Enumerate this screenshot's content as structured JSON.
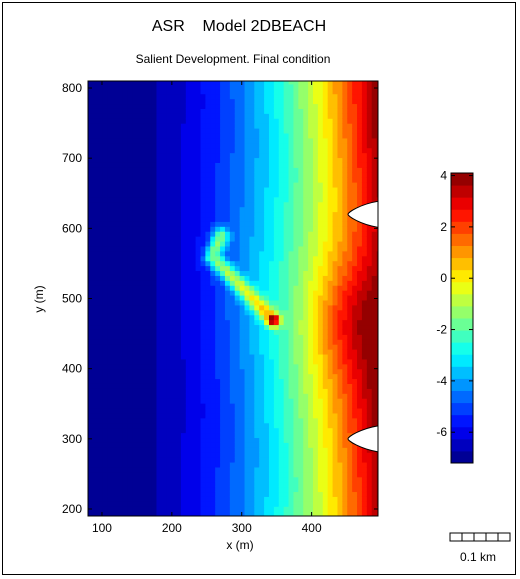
{
  "chart_data": {
    "type": "heatmap",
    "title": "ASR    Model 2DBEACH",
    "subtitle": "Salient Development. Final condition",
    "xlabel": "x (m)",
    "ylabel": "y (m)",
    "xlim": [
      80,
      495
    ],
    "ylim": [
      190,
      810
    ],
    "xticks": [
      100,
      200,
      300,
      400
    ],
    "yticks": [
      200,
      300,
      400,
      500,
      600,
      700,
      800
    ],
    "colorbar": {
      "range": [
        -7.2,
        4.1
      ],
      "ticks": [
        4,
        2,
        0,
        -2,
        -4,
        -6
      ],
      "colormap": "jet",
      "segments": 24
    },
    "features": {
      "reef_centerline": [
        [
          258,
          560
        ],
        [
          345,
          470
        ]
      ],
      "reef_top_arm": [
        [
          258,
          560
        ],
        [
          270,
          590
        ]
      ],
      "headlands_y": [
        300,
        620
      ],
      "salient_peak": {
        "x": 445,
        "y": 470
      }
    },
    "scalebar_label": "0.1 km"
  }
}
